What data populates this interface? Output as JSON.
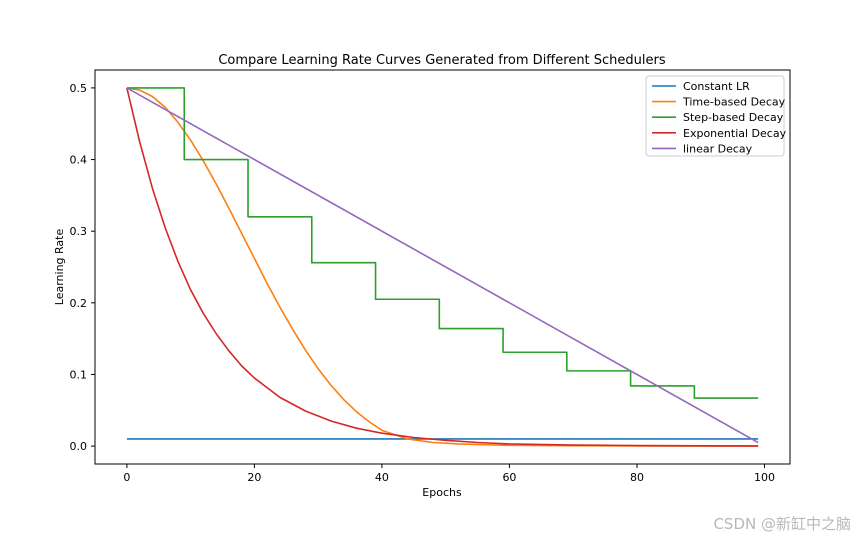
{
  "chart_data": {
    "type": "line",
    "title": "Compare Learning Rate Curves Generated from Different Schedulers",
    "xlabel": "Epochs",
    "ylabel": "Learning Rate",
    "xlim": [
      -5,
      104
    ],
    "ylim": [
      -0.025,
      0.525
    ],
    "xticks": [
      0,
      20,
      40,
      60,
      80,
      100
    ],
    "yticks": [
      0.0,
      0.1,
      0.2,
      0.3,
      0.4,
      0.5
    ],
    "ytick_labels": [
      "0.0",
      "0.1",
      "0.2",
      "0.3",
      "0.4",
      "0.5"
    ],
    "grid": false,
    "legend_position": "top-right",
    "series": [
      {
        "name": "Constant LR",
        "color": "#1f77b4",
        "x": [
          0,
          99
        ],
        "y": [
          0.01,
          0.01
        ]
      },
      {
        "name": "Time-based Decay",
        "color": "#ff7f0e",
        "x": [
          0,
          2,
          4,
          6,
          8,
          10,
          12,
          14,
          16,
          18,
          20,
          22,
          24,
          26,
          28,
          30,
          32,
          34,
          36,
          38,
          40,
          44,
          48,
          52,
          56,
          60,
          70,
          80,
          90,
          99
        ],
        "y": [
          0.5,
          0.497,
          0.488,
          0.473,
          0.452,
          0.427,
          0.398,
          0.366,
          0.332,
          0.297,
          0.262,
          0.227,
          0.194,
          0.163,
          0.134,
          0.108,
          0.085,
          0.065,
          0.048,
          0.034,
          0.022,
          0.01,
          0.005,
          0.003,
          0.002,
          0.001,
          0.0005,
          0.0002,
          0.0001,
          0.0
        ]
      },
      {
        "name": "Step-based Decay",
        "color": "#2ca02c",
        "x": [
          0,
          9,
          9,
          19,
          19,
          29,
          29,
          39,
          39,
          49,
          49,
          59,
          59,
          69,
          69,
          79,
          79,
          89,
          89,
          99
        ],
        "y": [
          0.5,
          0.5,
          0.4,
          0.4,
          0.32,
          0.32,
          0.256,
          0.256,
          0.205,
          0.205,
          0.164,
          0.164,
          0.131,
          0.131,
          0.105,
          0.105,
          0.084,
          0.084,
          0.067,
          0.067
        ]
      },
      {
        "name": "Exponential Decay",
        "color": "#d62728",
        "x": [
          0,
          2,
          4,
          6,
          8,
          10,
          12,
          14,
          16,
          18,
          20,
          24,
          28,
          32,
          36,
          40,
          45,
          50,
          55,
          60,
          70,
          80,
          90,
          99
        ],
        "y": [
          0.5,
          0.425,
          0.36,
          0.305,
          0.258,
          0.218,
          0.185,
          0.157,
          0.133,
          0.112,
          0.095,
          0.068,
          0.049,
          0.035,
          0.025,
          0.018,
          0.012,
          0.008,
          0.005,
          0.003,
          0.0015,
          0.0008,
          0.0004,
          0.0002
        ]
      },
      {
        "name": "linear Decay",
        "color": "#9467bd",
        "x": [
          0,
          99
        ],
        "y": [
          0.5,
          0.005
        ]
      }
    ]
  },
  "watermark": "CSDN @新缸中之脑"
}
